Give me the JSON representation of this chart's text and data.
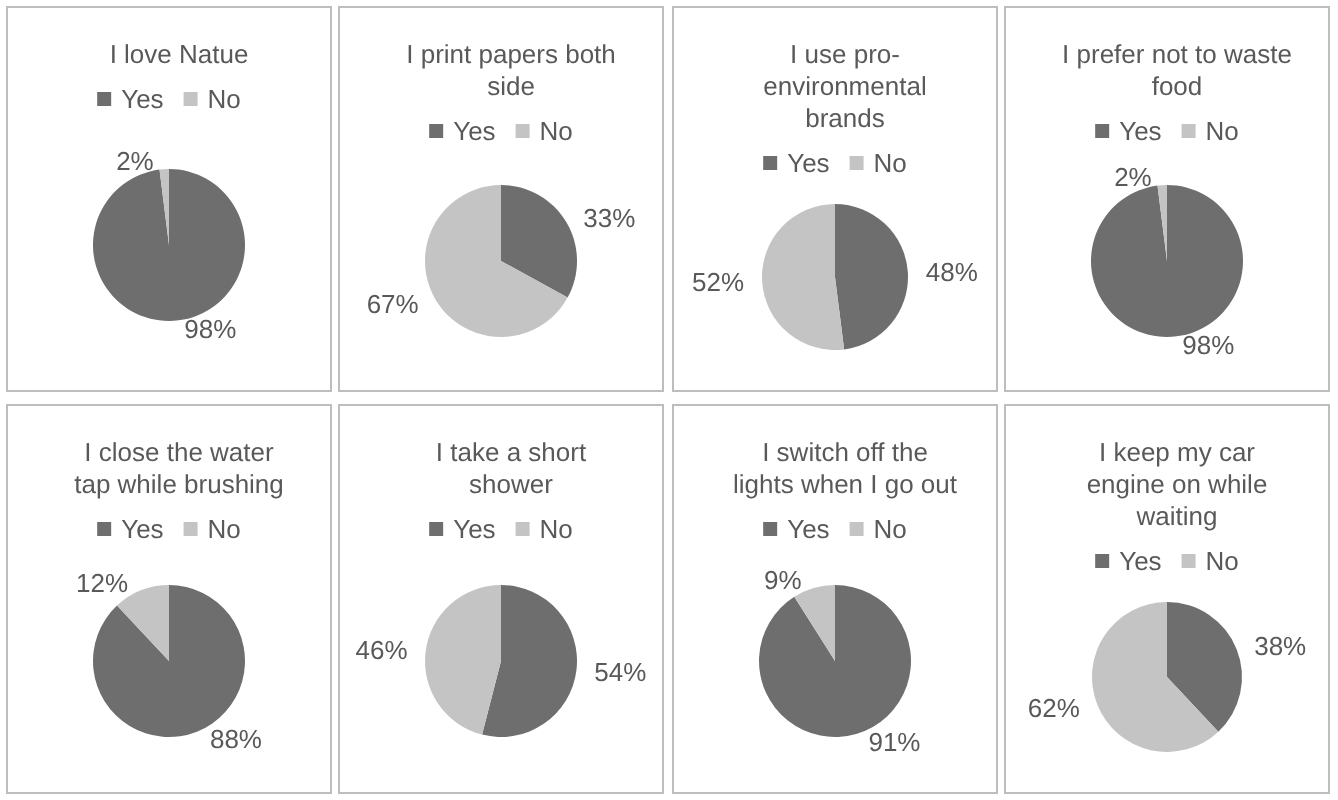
{
  "chart_data": [
    {
      "type": "pie",
      "title": "I love Natue",
      "categories": [
        "Yes",
        "No"
      ],
      "values": [
        98,
        2
      ],
      "colors": [
        "#6e6e6e",
        "#c4c4c4"
      ],
      "value_labels": [
        "98%",
        "2%"
      ],
      "legend": "top"
    },
    {
      "type": "pie",
      "title": "I print papers both side",
      "categories": [
        "Yes",
        "No"
      ],
      "values": [
        33,
        67
      ],
      "colors": [
        "#6e6e6e",
        "#c4c4c4"
      ],
      "value_labels": [
        "33%",
        "67%"
      ],
      "legend": "top"
    },
    {
      "type": "pie",
      "title": "I use pro-environmental brands",
      "categories": [
        "Yes",
        "No"
      ],
      "values": [
        48,
        52
      ],
      "colors": [
        "#6e6e6e",
        "#c4c4c4"
      ],
      "value_labels": [
        "48%",
        "52%"
      ],
      "legend": "top"
    },
    {
      "type": "pie",
      "title": "I prefer not to waste food",
      "categories": [
        "Yes",
        "No"
      ],
      "values": [
        98,
        2
      ],
      "colors": [
        "#6e6e6e",
        "#c4c4c4"
      ],
      "value_labels": [
        "98%",
        "2%"
      ],
      "legend": "top"
    },
    {
      "type": "pie",
      "title": "I close the water tap while brushing",
      "categories": [
        "Yes",
        "No"
      ],
      "values": [
        88,
        12
      ],
      "colors": [
        "#6e6e6e",
        "#c4c4c4"
      ],
      "value_labels": [
        "88%",
        "12%"
      ],
      "legend": "top"
    },
    {
      "type": "pie",
      "title": "I take a short shower",
      "categories": [
        "Yes",
        "No"
      ],
      "values": [
        54,
        46
      ],
      "colors": [
        "#6e6e6e",
        "#c4c4c4"
      ],
      "value_labels": [
        "54%",
        "46%"
      ],
      "legend": "top"
    },
    {
      "type": "pie",
      "title": "I switch off the lights when I go out",
      "categories": [
        "Yes",
        "No"
      ],
      "values": [
        91,
        9
      ],
      "colors": [
        "#6e6e6e",
        "#c4c4c4"
      ],
      "value_labels": [
        "91%",
        "9%"
      ],
      "legend": "top"
    },
    {
      "type": "pie",
      "title": "I keep my car engine on while waiting",
      "categories": [
        "Yes",
        "No"
      ],
      "values": [
        38,
        62
      ],
      "colors": [
        "#6e6e6e",
        "#c4c4c4"
      ],
      "value_labels": [
        "38%",
        "62%"
      ],
      "legend": "top"
    }
  ]
}
